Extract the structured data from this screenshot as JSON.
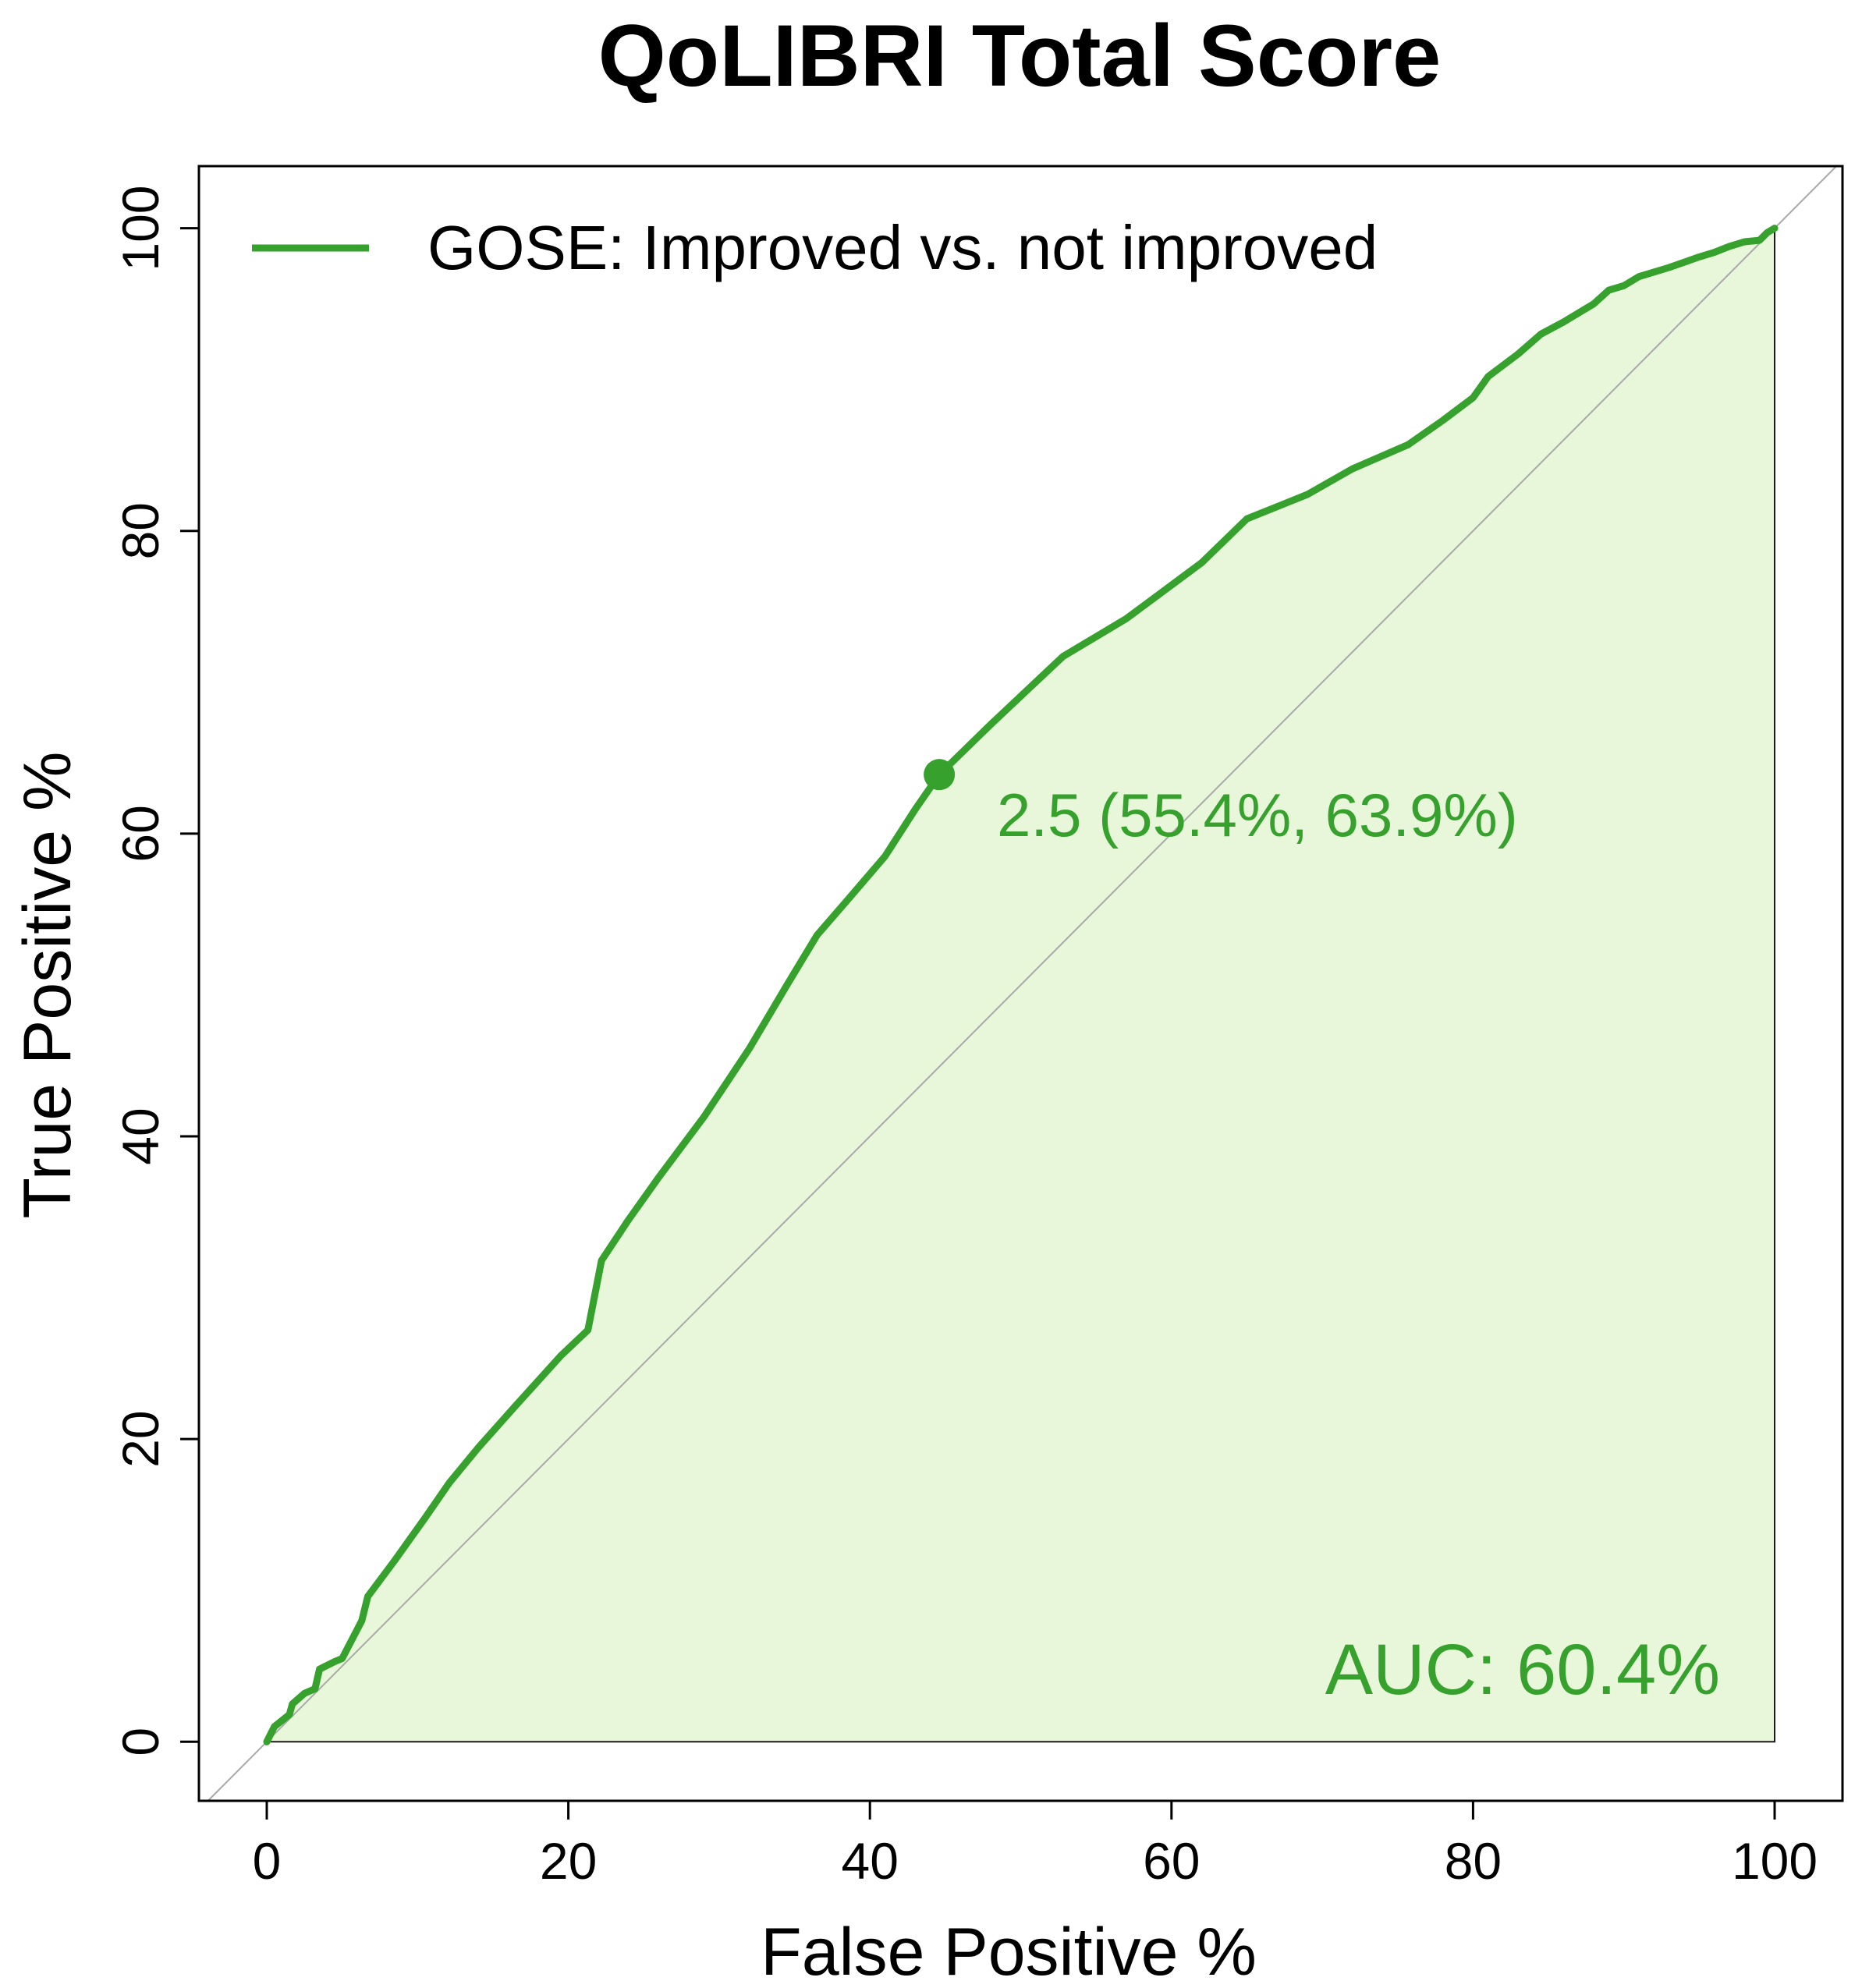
{
  "chart_data": {
    "type": "line",
    "title": "QoLIBRI Total Score",
    "xlabel": "False Positive %",
    "ylabel": "True Positive %",
    "xlim": [
      -4.5,
      104.5
    ],
    "ylim": [
      -3.9,
      104.1
    ],
    "x_ticks": [
      0,
      20,
      40,
      60,
      80,
      100
    ],
    "y_ticks": [
      0,
      20,
      40,
      60,
      80,
      100
    ],
    "x_tick_labels": [
      "0",
      "20",
      "40",
      "60",
      "80",
      "100"
    ],
    "y_tick_labels": [
      "0",
      "20",
      "40",
      "60",
      "80",
      "100"
    ],
    "legend": {
      "position": "top-left",
      "entries": [
        "GOSE: Improved vs. not improved"
      ]
    },
    "series": [
      {
        "name": "GOSE: Improved vs. not improved",
        "color": "#36A12D",
        "fill_color": "#E8F6DA",
        "x": [
          0,
          0.5,
          1.5,
          1.7,
          2.5,
          3.2,
          3.5,
          4.5,
          5.0,
          6.3,
          6.7,
          8.5,
          10.5,
          12.1,
          14.0,
          16.5,
          19.5,
          21.3,
          22.2,
          24.0,
          26.0,
          29.0,
          32.0,
          34.5,
          36.5,
          38.5,
          41.0,
          43.0,
          44.6,
          48.0,
          52.8,
          57.0,
          62.0,
          65.0,
          69.0,
          72.0,
          75.7,
          78.0,
          80.0,
          81.0,
          83.0,
          84.5,
          86.0,
          88.0,
          89.0,
          90.0,
          91.0,
          93.0,
          95.0,
          96.0,
          97.0,
          98.0,
          99.0,
          99.5,
          100
        ],
        "y": [
          0,
          1.0,
          1.8,
          2.5,
          3.2,
          3.5,
          4.8,
          5.3,
          5.5,
          8.0,
          9.6,
          12.0,
          14.8,
          17.1,
          19.4,
          22.2,
          25.5,
          27.2,
          31.8,
          34.5,
          37.3,
          41.3,
          45.8,
          50.0,
          53.3,
          55.6,
          58.5,
          61.6,
          63.9,
          67.2,
          71.7,
          74.2,
          77.9,
          80.8,
          82.4,
          84.1,
          85.7,
          87.3,
          88.8,
          90.2,
          91.7,
          93.0,
          93.8,
          95.0,
          95.9,
          96.2,
          96.8,
          97.4,
          98.1,
          98.4,
          98.8,
          99.1,
          99.2,
          99.7,
          100
        ]
      }
    ],
    "reference_line": {
      "from": [
        0,
        0
      ],
      "to": [
        100,
        100
      ],
      "color": "#A9A9A9",
      "extends_to_axes": true
    },
    "threshold_point": {
      "x": 44.6,
      "y": 63.9,
      "label": "2.5 (55.4%, 63.9%)"
    },
    "auc_label": "AUC: 60.4%"
  }
}
